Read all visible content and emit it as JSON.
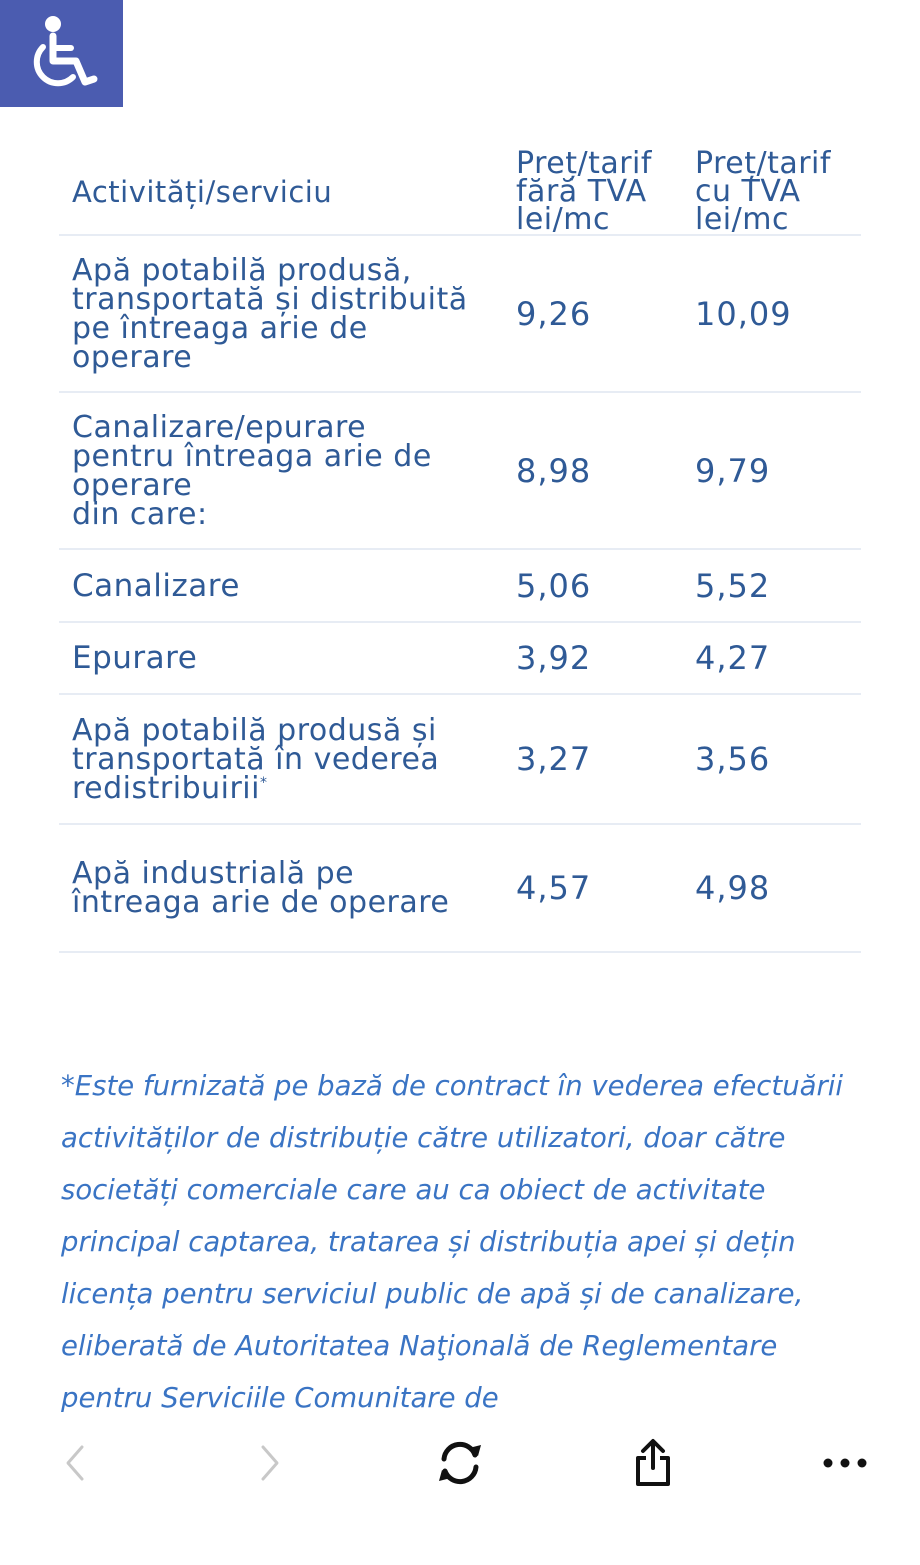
{
  "accessibility": {
    "icon": "wheelchair-icon",
    "color": "#4b5cb0"
  },
  "table": {
    "headers": {
      "activity": "Activități/serviciu",
      "price_no_vat": [
        "Preț/tarif",
        "fără TVA",
        "lei/mc"
      ],
      "price_with_vat": [
        "Preț/tarif",
        "cu TVA",
        "lei/mc"
      ]
    },
    "rows": [
      {
        "activity": [
          "Apă potabilă produsă,",
          "transportată și distribuită",
          "pe întreaga arie de",
          "operare"
        ],
        "no_vat": "9,26",
        "with_vat": "10,09"
      },
      {
        "activity": [
          "Canalizare/epurare",
          "pentru întreaga arie de",
          "operare",
          "din care:"
        ],
        "no_vat": "8,98",
        "with_vat": "9,79"
      },
      {
        "activity": [
          "Canalizare"
        ],
        "no_vat": "5,06",
        "with_vat": "5,52",
        "sub": true
      },
      {
        "activity": [
          "Epurare"
        ],
        "no_vat": "3,92",
        "with_vat": "4,27",
        "sub": true
      },
      {
        "activity": [
          "Apă potabilă produsă și",
          "transportată în vederea",
          "redistribuirii"
        ],
        "footnote": "*",
        "no_vat": "3,27",
        "with_vat": "3,56"
      },
      {
        "activity": [
          "Apă industrială pe",
          "întreaga arie de operare"
        ],
        "no_vat": "4,57",
        "with_vat": "4,98"
      }
    ]
  },
  "note": "*Este furnizată pe bază de contract în vederea efectuării activităților de distribuție către utilizatori, doar către societăți comerciale care au ca  obiect de activitate principal captarea, tratarea și distribuția apei și dețin licența pentru serviciul public de apă și de canalizare, eliberată de Autoritatea Naţională de Reglementare pentru Serviciile Comunitare de",
  "toolbar": {
    "back": "chevron-left-icon",
    "forward": "chevron-right-icon",
    "reload": "reload-icon",
    "share": "share-icon",
    "more": "more-icon"
  },
  "colors": {
    "text": "#2f5a96",
    "note": "#3a74c4",
    "divider": "#e7ecf4"
  }
}
